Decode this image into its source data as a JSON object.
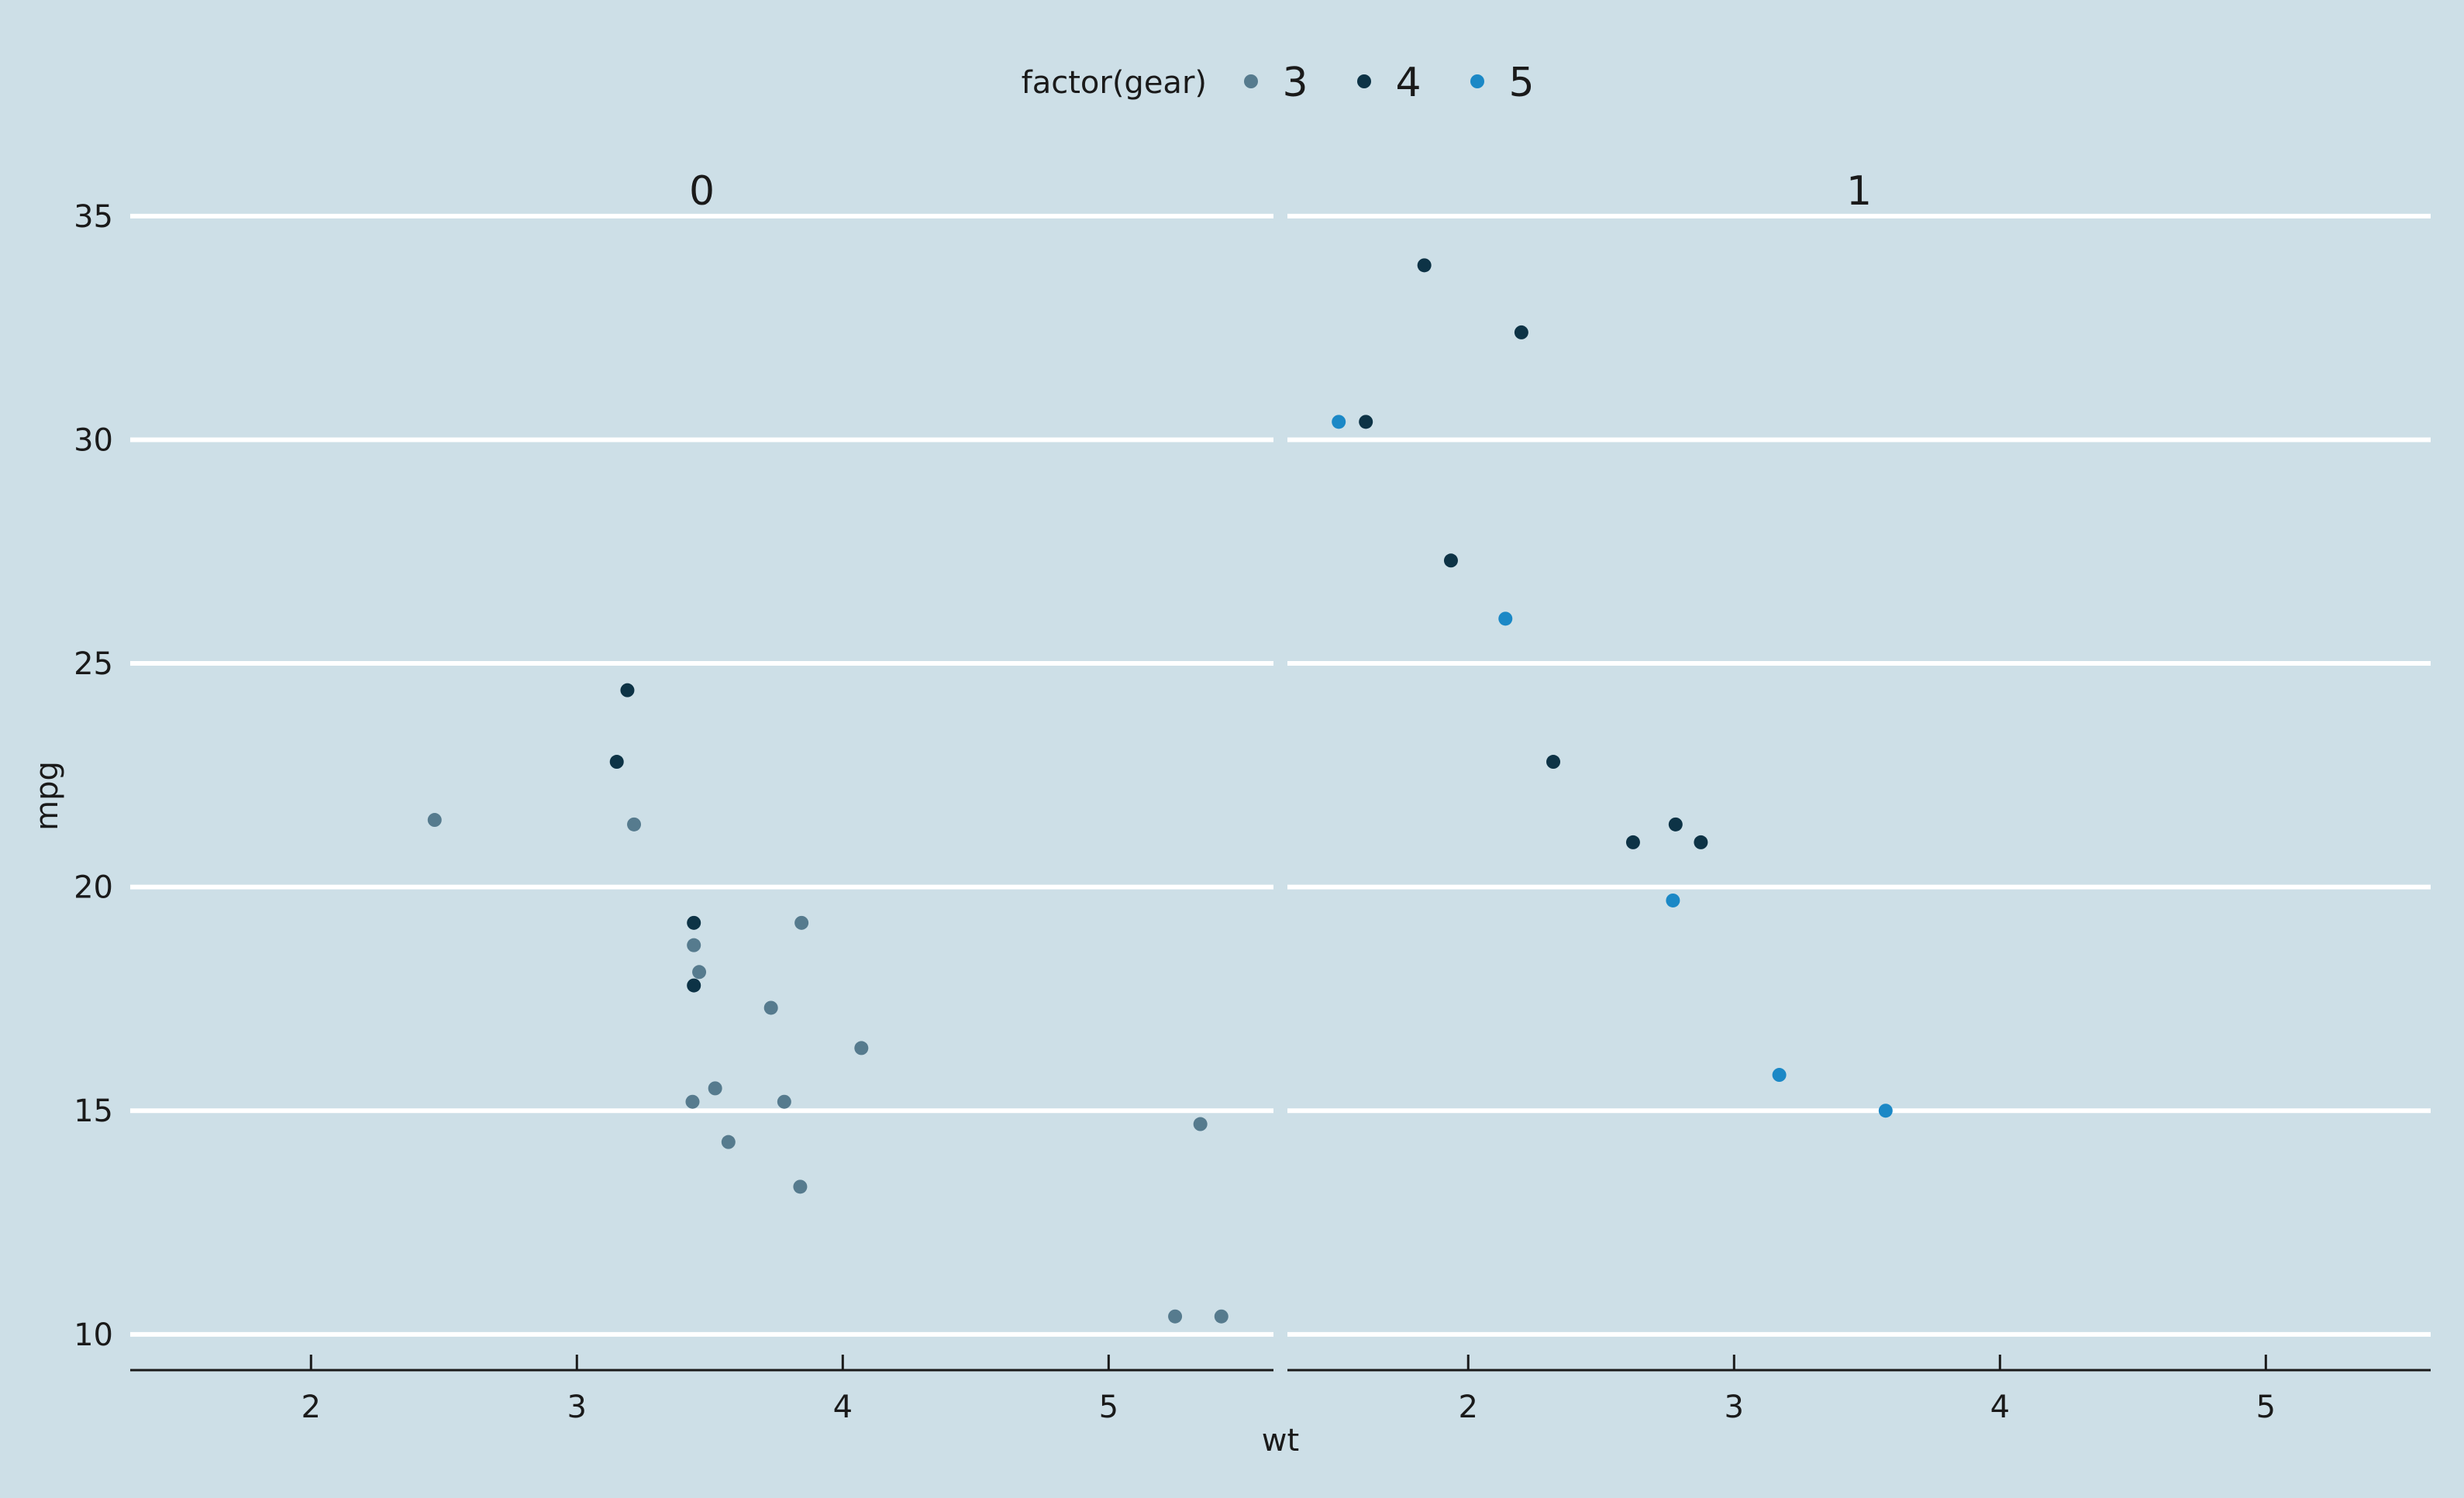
{
  "chart_data": {
    "type": "scatter",
    "title": "",
    "xlabel": "wt",
    "ylabel": "mpg",
    "legend": {
      "title": "factor(gear)",
      "position": "top",
      "items": [
        {
          "label": "3",
          "color": "#567b8e"
        },
        {
          "label": "4",
          "color": "#0d3346"
        },
        {
          "label": "5",
          "color": "#1b88c6"
        }
      ]
    },
    "grid": "horizontal major only",
    "xlim": [
      1.32,
      5.62
    ],
    "ylim": [
      9.2,
      35.5
    ],
    "x_ticks": [
      2,
      3,
      4,
      5
    ],
    "y_ticks": [
      10,
      15,
      20,
      25,
      30,
      35
    ],
    "panels": [
      {
        "label": "0",
        "series": [
          {
            "name": "3",
            "points": [
              [
                2.465,
                21.5
              ],
              [
                3.215,
                21.4
              ],
              [
                3.44,
                18.7
              ],
              [
                3.46,
                18.1
              ],
              [
                3.57,
                14.3
              ],
              [
                3.73,
                17.3
              ],
              [
                3.78,
                15.2
              ],
              [
                4.07,
                16.4
              ],
              [
                5.25,
                10.4
              ],
              [
                5.424,
                10.4
              ],
              [
                5.345,
                14.7
              ],
              [
                3.52,
                15.5
              ],
              [
                3.435,
                15.2
              ],
              [
                3.84,
                13.3
              ],
              [
                3.845,
                19.2
              ]
            ]
          },
          {
            "name": "4",
            "points": [
              [
                3.19,
                24.4
              ],
              [
                3.15,
                22.8
              ],
              [
                3.44,
                19.2
              ],
              [
                3.44,
                17.8
              ]
            ]
          },
          {
            "name": "5",
            "points": []
          }
        ]
      },
      {
        "label": "1",
        "series": [
          {
            "name": "3",
            "points": []
          },
          {
            "name": "4",
            "points": [
              [
                2.62,
                21.0
              ],
              [
                2.875,
                21.0
              ],
              [
                2.32,
                22.8
              ],
              [
                2.2,
                32.4
              ],
              [
                1.615,
                30.4
              ],
              [
                1.835,
                33.9
              ],
              [
                1.935,
                27.3
              ],
              [
                2.78,
                21.4
              ]
            ]
          },
          {
            "name": "5",
            "points": [
              [
                2.14,
                26.0
              ],
              [
                1.513,
                30.4
              ],
              [
                3.17,
                15.8
              ],
              [
                2.77,
                19.7
              ],
              [
                3.57,
                15.0
              ]
            ]
          }
        ]
      }
    ]
  }
}
